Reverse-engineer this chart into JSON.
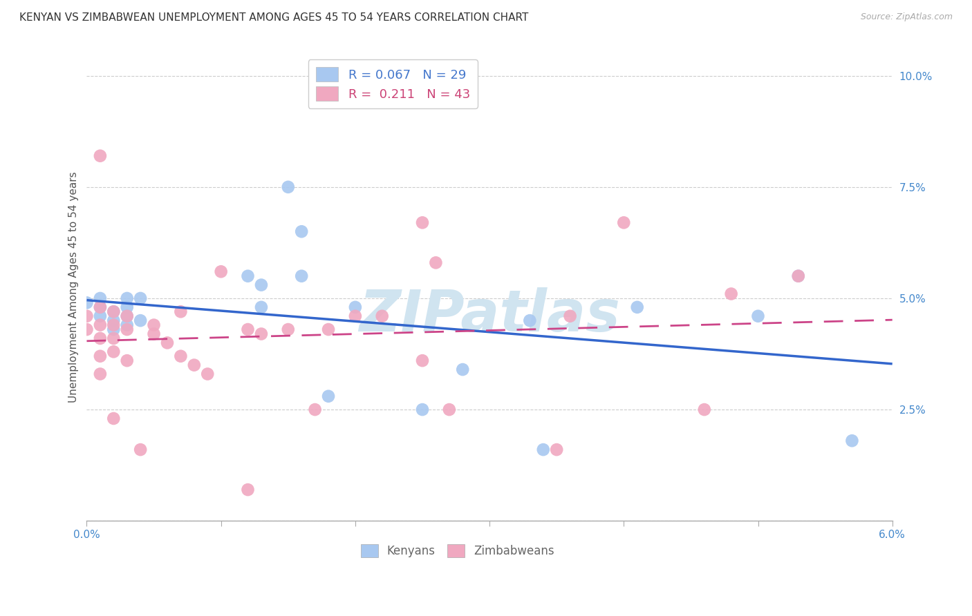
{
  "title": "KENYAN VS ZIMBABWEAN UNEMPLOYMENT AMONG AGES 45 TO 54 YEARS CORRELATION CHART",
  "source": "Source: ZipAtlas.com",
  "ylabel": "Unemployment Among Ages 45 to 54 years",
  "xlim": [
    0.0,
    0.06
  ],
  "ylim": [
    0.0,
    0.105
  ],
  "xticks": [
    0.0,
    0.01,
    0.02,
    0.03,
    0.04,
    0.05,
    0.06
  ],
  "xticklabels_edge": {
    "0": "0.0%",
    "6": "6.0%"
  },
  "yticks": [
    0.0,
    0.025,
    0.05,
    0.075,
    0.1
  ],
  "yticklabels": [
    "",
    "2.5%",
    "5.0%",
    "7.5%",
    "10.0%"
  ],
  "watermark": "ZIPatlas",
  "legend_top": [
    {
      "label": "R = 0.067   N = 29",
      "color": "#a8c8f0",
      "textcolor": "#4477cc"
    },
    {
      "label": "R =  0.211   N = 43",
      "color": "#f0a8c0",
      "textcolor": "#cc4477"
    }
  ],
  "legend_bottom": [
    {
      "label": "Kenyans",
      "color": "#a8c8f0"
    },
    {
      "label": "Zimbabweans",
      "color": "#f0a8c0"
    }
  ],
  "kenyan_x": [
    0.0,
    0.001,
    0.001,
    0.001,
    0.002,
    0.002,
    0.002,
    0.003,
    0.003,
    0.003,
    0.003,
    0.004,
    0.004,
    0.012,
    0.013,
    0.013,
    0.015,
    0.016,
    0.016,
    0.018,
    0.02,
    0.025,
    0.028,
    0.033,
    0.034,
    0.041,
    0.05,
    0.053,
    0.057
  ],
  "kenyan_y": [
    0.049,
    0.048,
    0.046,
    0.05,
    0.047,
    0.045,
    0.043,
    0.05,
    0.048,
    0.044,
    0.046,
    0.05,
    0.045,
    0.055,
    0.053,
    0.048,
    0.075,
    0.055,
    0.065,
    0.028,
    0.048,
    0.025,
    0.034,
    0.045,
    0.016,
    0.048,
    0.046,
    0.055,
    0.018
  ],
  "zimbabwean_x": [
    0.0,
    0.0,
    0.001,
    0.001,
    0.001,
    0.001,
    0.001,
    0.001,
    0.002,
    0.002,
    0.002,
    0.002,
    0.002,
    0.003,
    0.003,
    0.003,
    0.004,
    0.005,
    0.005,
    0.006,
    0.007,
    0.007,
    0.008,
    0.009,
    0.01,
    0.012,
    0.012,
    0.013,
    0.015,
    0.017,
    0.018,
    0.02,
    0.022,
    0.025,
    0.025,
    0.026,
    0.027,
    0.035,
    0.036,
    0.04,
    0.046,
    0.048,
    0.053
  ],
  "zimbabwean_y": [
    0.046,
    0.043,
    0.082,
    0.048,
    0.044,
    0.041,
    0.037,
    0.033,
    0.047,
    0.044,
    0.041,
    0.038,
    0.023,
    0.046,
    0.043,
    0.036,
    0.016,
    0.044,
    0.042,
    0.04,
    0.047,
    0.037,
    0.035,
    0.033,
    0.056,
    0.007,
    0.043,
    0.042,
    0.043,
    0.025,
    0.043,
    0.046,
    0.046,
    0.067,
    0.036,
    0.058,
    0.025,
    0.016,
    0.046,
    0.067,
    0.025,
    0.051,
    0.055
  ],
  "kenyan_line_color": "#3366cc",
  "zimbabwean_line_color": "#cc4488",
  "kenyan_dot_color": "#a8c8f0",
  "zimbabwean_dot_color": "#f0a8c0",
  "dot_size": 180,
  "title_fontsize": 11,
  "axis_label_fontsize": 11,
  "tick_fontsize": 11,
  "watermark_color": "#d0e4f0",
  "watermark_fontsize": 60,
  "grid_color": "#cccccc"
}
